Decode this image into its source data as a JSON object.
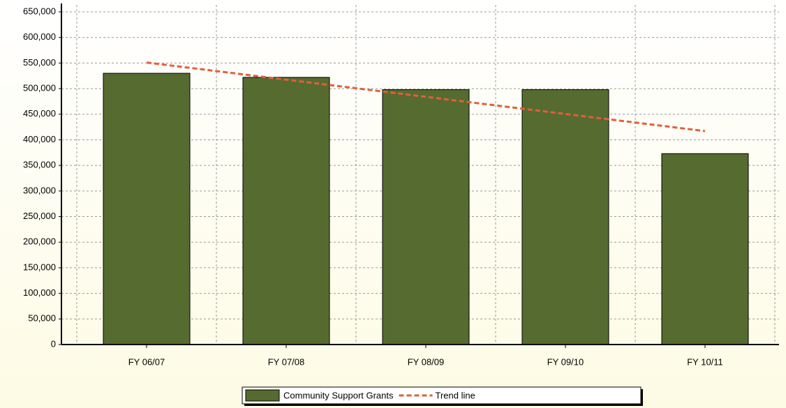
{
  "chart_data": {
    "type": "bar",
    "categories": [
      "FY 06/07",
      "FY 07/08",
      "FY 08/09",
      "FY 09/10",
      "FY 10/11"
    ],
    "series": [
      {
        "name": "Community Support Grants",
        "color": "#566b30",
        "values": [
          530000,
          522000,
          498000,
          498000,
          373000
        ]
      },
      {
        "name": "Trend line",
        "type": "line",
        "color": "#e0603a",
        "values": [
          551000,
          517500,
          484000,
          450500,
          417000
        ]
      }
    ],
    "ylim": [
      0,
      650000
    ],
    "yticks": [
      0,
      {
        "value": 50000,
        "label": "50,000"
      },
      {
        "value": 100000,
        "label": "100,000"
      },
      {
        "value": 150000,
        "label": "150,000"
      },
      {
        "value": 200000,
        "label": "200,000"
      },
      {
        "value": 250000,
        "label": "250,000"
      },
      {
        "value": 300000,
        "label": "300,000"
      },
      {
        "value": 350000,
        "label": "350,000"
      },
      {
        "value": 400000,
        "label": "400,000"
      },
      {
        "value": 450000,
        "label": "450,000"
      },
      {
        "value": 500000,
        "label": "500,000"
      },
      {
        "value": 550000,
        "label": "550,000"
      },
      {
        "value": 600000,
        "label": "600,000"
      },
      {
        "value": 650000,
        "label": "650,000"
      }
    ],
    "grid": true
  }
}
